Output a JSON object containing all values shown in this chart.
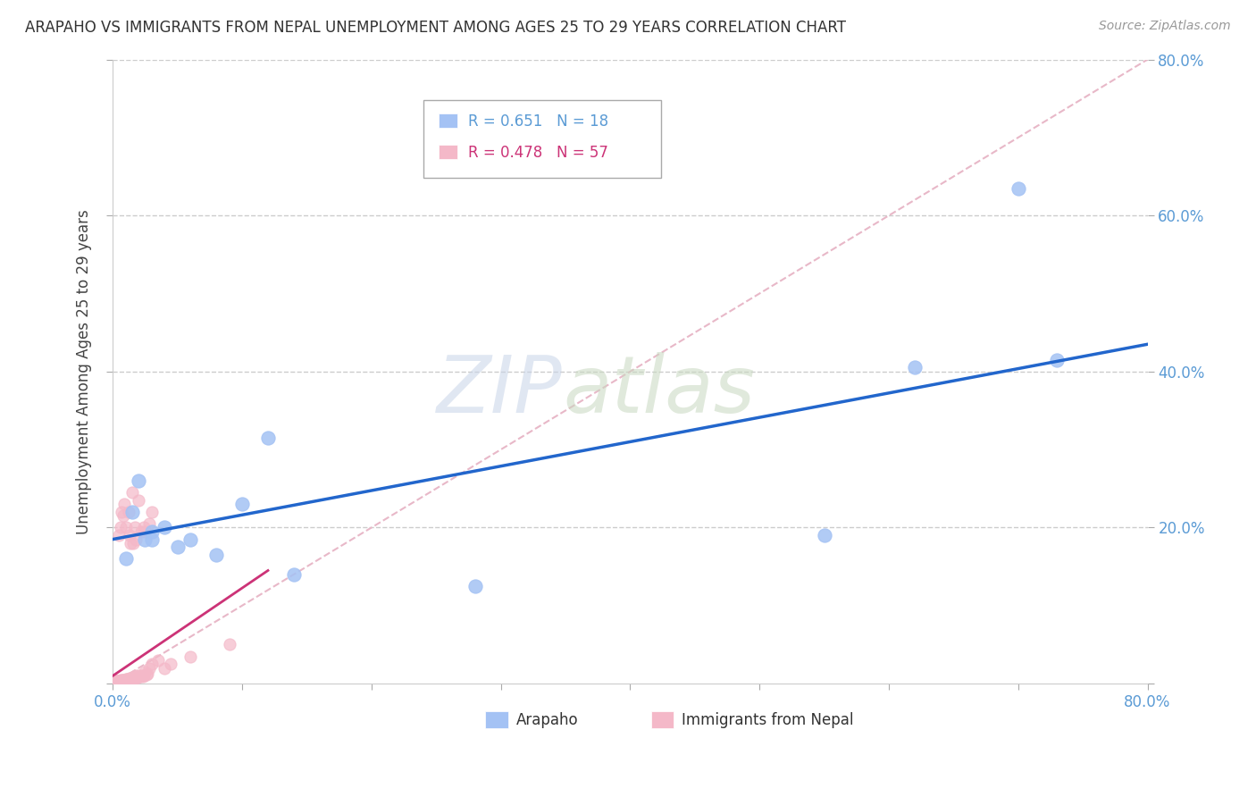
{
  "title": "ARAPAHO VS IMMIGRANTS FROM NEPAL UNEMPLOYMENT AMONG AGES 25 TO 29 YEARS CORRELATION CHART",
  "source": "Source: ZipAtlas.com",
  "ylabel": "Unemployment Among Ages 25 to 29 years",
  "xlim": [
    0,
    0.8
  ],
  "ylim": [
    0,
    0.8
  ],
  "xticks": [
    0.0,
    0.1,
    0.2,
    0.3,
    0.4,
    0.5,
    0.6,
    0.7,
    0.8
  ],
  "yticks": [
    0.0,
    0.2,
    0.4,
    0.6,
    0.8
  ],
  "right_yticklabels": [
    "",
    "20.0%",
    "40.0%",
    "60.0%",
    "80.0%"
  ],
  "watermark_zip": "ZIP",
  "watermark_atlas": "atlas",
  "arapaho_R": 0.651,
  "arapaho_N": 18,
  "nepal_R": 0.478,
  "nepal_N": 57,
  "blue_color": "#a4c2f4",
  "pink_color": "#f4b8c8",
  "blue_line_color": "#2266cc",
  "pink_line_color": "#cc3377",
  "blue_line_x0": 0.0,
  "blue_line_y0": 0.185,
  "blue_line_x1": 0.8,
  "blue_line_y1": 0.435,
  "pink_line_x0": 0.0,
  "pink_line_y0": 0.01,
  "pink_line_x1": 0.12,
  "pink_line_y1": 0.145,
  "arapaho_x": [
    0.01,
    0.015,
    0.02,
    0.025,
    0.03,
    0.03,
    0.04,
    0.05,
    0.06,
    0.08,
    0.1,
    0.12,
    0.14,
    0.28,
    0.55,
    0.62,
    0.7,
    0.73
  ],
  "arapaho_y": [
    0.16,
    0.22,
    0.26,
    0.185,
    0.195,
    0.185,
    0.2,
    0.175,
    0.185,
    0.165,
    0.23,
    0.315,
    0.14,
    0.125,
    0.19,
    0.405,
    0.635,
    0.415
  ],
  "nepal_x": [
    0.002,
    0.002,
    0.003,
    0.003,
    0.003,
    0.004,
    0.004,
    0.004,
    0.005,
    0.005,
    0.005,
    0.005,
    0.006,
    0.006,
    0.006,
    0.007,
    0.007,
    0.007,
    0.007,
    0.008,
    0.008,
    0.008,
    0.009,
    0.009,
    0.01,
    0.01,
    0.01,
    0.01,
    0.011,
    0.011,
    0.012,
    0.012,
    0.013,
    0.013,
    0.014,
    0.015,
    0.015,
    0.016,
    0.017,
    0.018,
    0.018,
    0.019,
    0.02,
    0.021,
    0.022,
    0.023,
    0.024,
    0.025,
    0.026,
    0.027,
    0.028,
    0.03,
    0.035,
    0.04,
    0.045,
    0.06,
    0.09
  ],
  "nepal_y": [
    0.002,
    0.003,
    0.002,
    0.003,
    0.003,
    0.002,
    0.003,
    0.004,
    0.002,
    0.003,
    0.003,
    0.004,
    0.003,
    0.004,
    0.005,
    0.003,
    0.004,
    0.004,
    0.005,
    0.003,
    0.004,
    0.005,
    0.004,
    0.005,
    0.004,
    0.005,
    0.005,
    0.006,
    0.004,
    0.006,
    0.005,
    0.006,
    0.005,
    0.007,
    0.006,
    0.007,
    0.008,
    0.007,
    0.008,
    0.007,
    0.01,
    0.008,
    0.01,
    0.009,
    0.01,
    0.009,
    0.01,
    0.015,
    0.012,
    0.013,
    0.02,
    0.025,
    0.03,
    0.02,
    0.025,
    0.035,
    0.05
  ],
  "nepal_cluster_x": [
    0.005,
    0.006,
    0.007,
    0.008,
    0.009,
    0.01,
    0.012,
    0.013,
    0.014,
    0.015,
    0.016,
    0.017,
    0.018,
    0.02,
    0.022,
    0.024,
    0.025,
    0.028,
    0.03
  ],
  "nepal_cluster_y": [
    0.19,
    0.2,
    0.22,
    0.215,
    0.23,
    0.2,
    0.22,
    0.19,
    0.18,
    0.245,
    0.18,
    0.2,
    0.185,
    0.235,
    0.195,
    0.2,
    0.195,
    0.205,
    0.22
  ]
}
